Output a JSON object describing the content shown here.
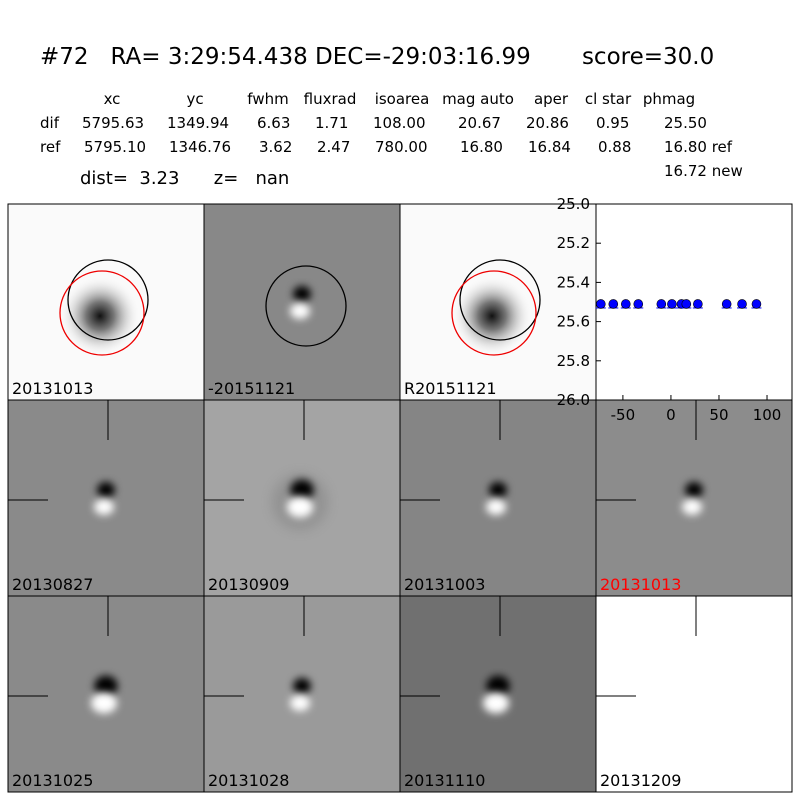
{
  "header": {
    "title": "#72   RA= 3:29:54.438 DEC=-29:03:16.99       score=30.0",
    "dist": "dist=  3.23      z=   nan",
    "new_mag": "16.72 new"
  },
  "table": {
    "columns": [
      "xc",
      "yc",
      "fwhm",
      "fluxrad",
      "isoarea",
      "mag auto",
      "aper",
      "cl star",
      "phmag"
    ],
    "rows": [
      [
        "dif",
        "5795.63",
        "1349.94",
        "6.63",
        "1.71",
        "108.00",
        "20.67",
        "20.86",
        "0.95",
        "25.50"
      ],
      [
        "ref",
        "5795.10",
        "1346.76",
        "3.62",
        "2.47",
        "780.00",
        "16.80",
        "16.84",
        "0.88",
        "16.80 ref"
      ]
    ]
  },
  "stamps": [
    {
      "label": "20131013",
      "color": "#000000"
    },
    {
      "label": "-20151121",
      "color": "#000000"
    },
    {
      "label": "R20151121",
      "color": "#000000"
    },
    {
      "label": "20130827",
      "color": "#000000"
    },
    {
      "label": "20130909",
      "color": "#000000"
    },
    {
      "label": "20131003",
      "color": "#000000"
    },
    {
      "label": "20131013",
      "color": "#ff0000"
    },
    {
      "label": "20131025",
      "color": "#000000"
    },
    {
      "label": "20131028",
      "color": "#000000"
    },
    {
      "label": "20131110",
      "color": "#000000"
    },
    {
      "label": "20131209",
      "color": "#000000"
    }
  ],
  "chart_data": {
    "type": "scatter",
    "x": [
      -73,
      -60,
      -47,
      -34,
      -10,
      1,
      11,
      16,
      28,
      58,
      74,
      89
    ],
    "series": [
      {
        "color": "#0000ff",
        "values": [
          25.51,
          25.51,
          25.51,
          25.51,
          25.51,
          25.51,
          25.51,
          25.51,
          25.51,
          25.51,
          25.51,
          25.51
        ]
      }
    ],
    "xlim": [
      -78,
      126
    ],
    "xticks": [
      -50,
      0,
      50,
      100
    ],
    "ylim": [
      26.0,
      25.0
    ],
    "yticks": [
      {
        "value": 25.0,
        "label": "25.0"
      },
      {
        "value": 25.2,
        "label": "25.2"
      },
      {
        "value": 25.4,
        "label": "25.4"
      },
      {
        "value": 25.6,
        "label": "25.6"
      },
      {
        "value": 25.8,
        "label": "25.8"
      },
      {
        "value": 26.0,
        "label": "26.0"
      }
    ]
  }
}
